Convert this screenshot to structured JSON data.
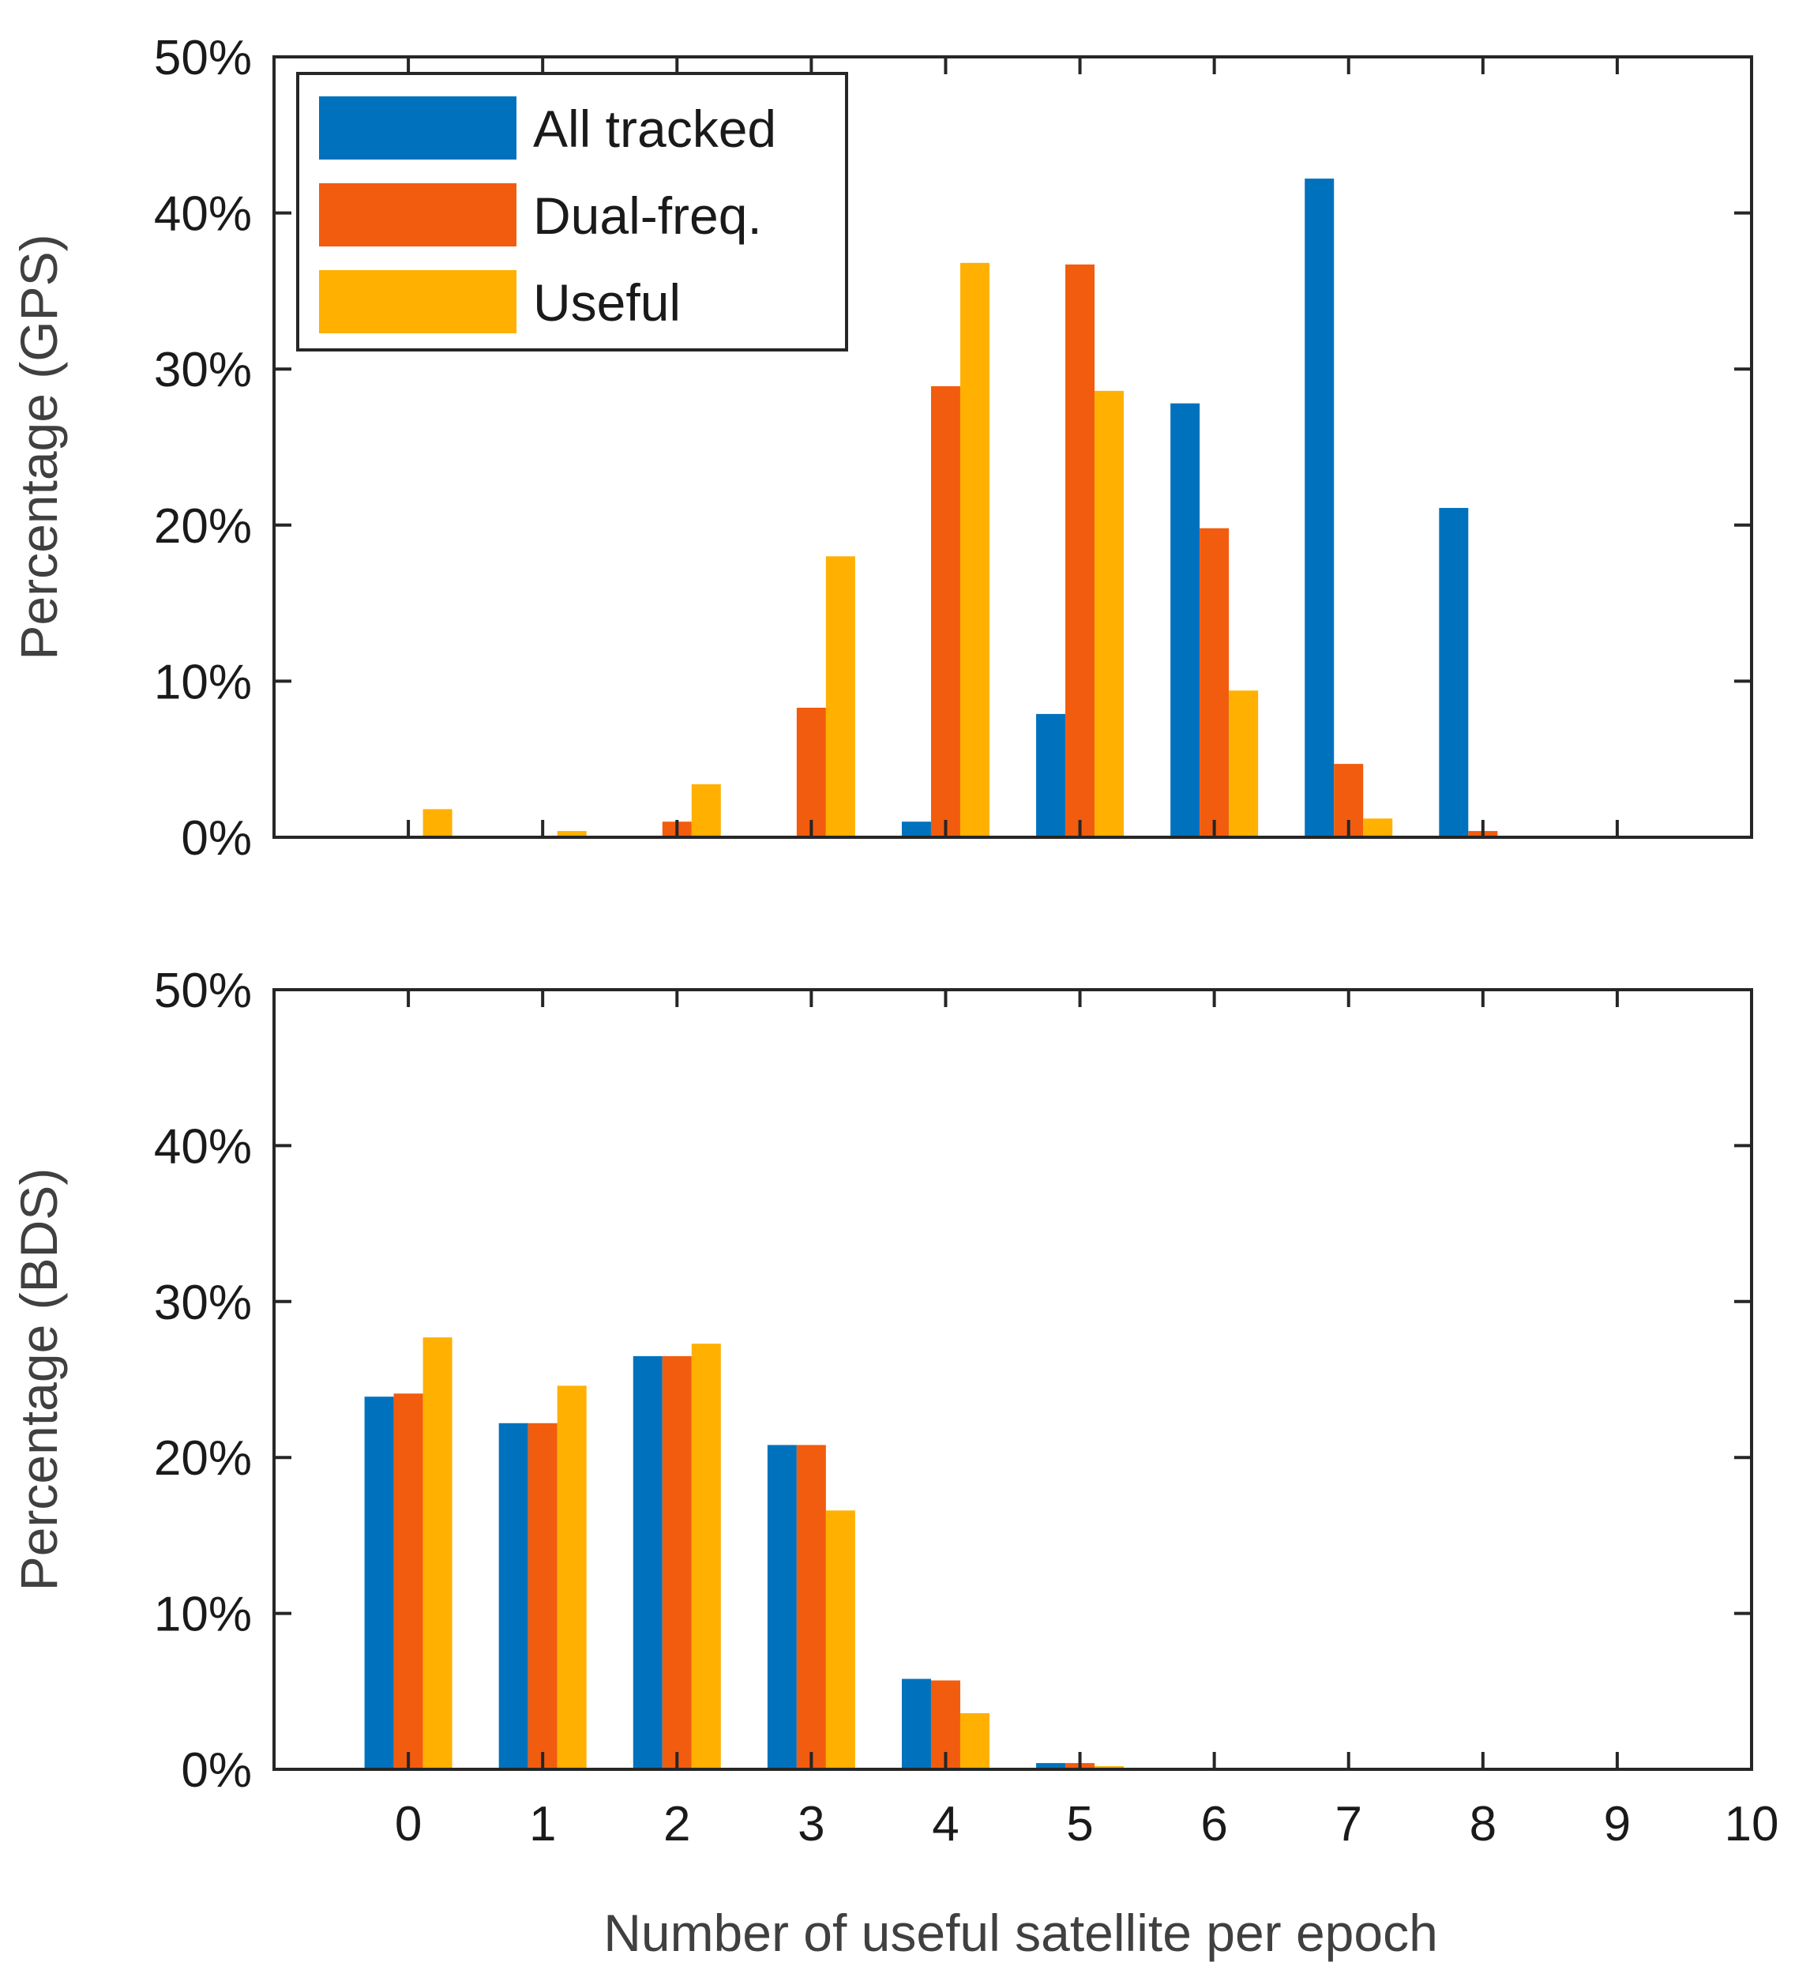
{
  "chart_data": [
    {
      "type": "bar",
      "panel": "top",
      "ylabel": "Percentage (GPS)",
      "xlabel": "",
      "xlim": [
        -1,
        10
      ],
      "ylim": [
        0,
        50
      ],
      "yticks": [
        0,
        10,
        20,
        30,
        40,
        50
      ],
      "ytick_labels": [
        "0%",
        "10%",
        "20%",
        "30%",
        "40%",
        "50%"
      ],
      "xticks": [
        0,
        1,
        2,
        3,
        4,
        5,
        6,
        7,
        8,
        9,
        10
      ],
      "xtick_labels": [],
      "categories": [
        0,
        1,
        2,
        3,
        4,
        5,
        6,
        7,
        8,
        9,
        10
      ],
      "legend_position": "top-left",
      "series": [
        {
          "name": "All tracked",
          "color": "#0072BD",
          "values": [
            0,
            0,
            0,
            0,
            1.0,
            7.9,
            27.8,
            42.2,
            21.1,
            0,
            0
          ]
        },
        {
          "name": "Dual-freq.",
          "color": "#F25C0F",
          "values": [
            0,
            0,
            1.0,
            8.3,
            28.9,
            36.7,
            19.8,
            4.7,
            0.4,
            0,
            0
          ]
        },
        {
          "name": "Useful",
          "color": "#FFB000",
          "values": [
            1.8,
            0.4,
            3.4,
            18.0,
            36.8,
            28.6,
            9.4,
            1.2,
            0,
            0,
            0
          ]
        }
      ]
    },
    {
      "type": "bar",
      "panel": "bottom",
      "ylabel": "Percentage (BDS)",
      "xlabel": "Number of useful satellite per epoch",
      "xlim": [
        -1,
        10
      ],
      "ylim": [
        0,
        50
      ],
      "yticks": [
        0,
        10,
        20,
        30,
        40,
        50
      ],
      "ytick_labels": [
        "0%",
        "10%",
        "20%",
        "30%",
        "40%",
        "50%"
      ],
      "xticks": [
        0,
        1,
        2,
        3,
        4,
        5,
        6,
        7,
        8,
        9,
        10
      ],
      "xtick_labels": [
        "0",
        "1",
        "2",
        "3",
        "4",
        "5",
        "6",
        "7",
        "8",
        "9",
        "10"
      ],
      "categories": [
        0,
        1,
        2,
        3,
        4,
        5,
        6,
        7,
        8,
        9,
        10
      ],
      "series": [
        {
          "name": "All tracked",
          "color": "#0072BD",
          "values": [
            23.9,
            22.2,
            26.5,
            20.8,
            5.8,
            0.4,
            0.1,
            0,
            0,
            0,
            0
          ]
        },
        {
          "name": "Dual-freq.",
          "color": "#F25C0F",
          "values": [
            24.1,
            22.2,
            26.5,
            20.8,
            5.7,
            0.4,
            0.1,
            0,
            0,
            0,
            0
          ]
        },
        {
          "name": "Useful",
          "color": "#FFB000",
          "values": [
            27.7,
            24.6,
            27.3,
            16.6,
            3.6,
            0.2,
            0,
            0,
            0,
            0,
            0
          ]
        }
      ]
    }
  ]
}
